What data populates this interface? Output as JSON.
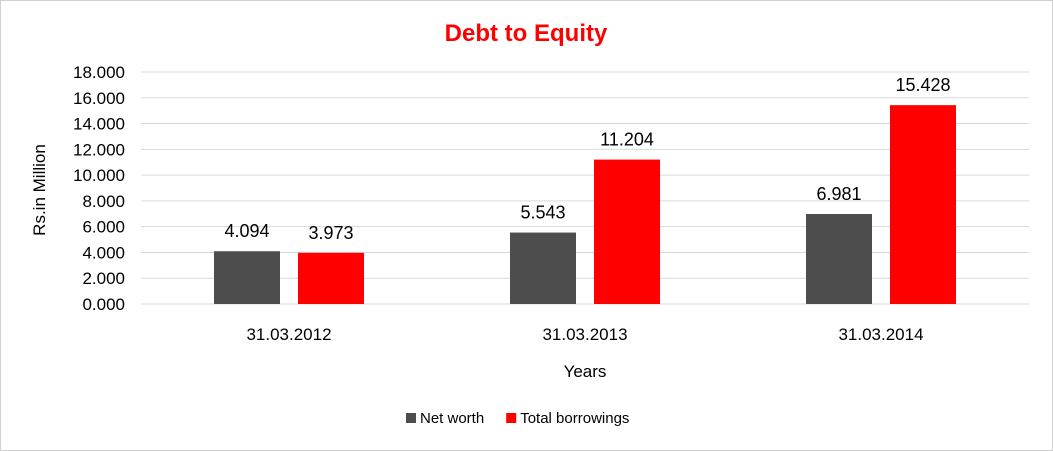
{
  "chart_data": {
    "type": "bar",
    "title": "Debt to Equity",
    "xlabel": "Years",
    "ylabel": "Rs.in Million",
    "categories": [
      "31.03.2012",
      "31.03.2013",
      "31.03.2014"
    ],
    "series": [
      {
        "name": "Net worth",
        "values": [
          4.094,
          5.543,
          6.981
        ],
        "labels": [
          "4.094",
          "5.543",
          "6.981"
        ],
        "color": "#4d4d4d"
      },
      {
        "name": "Total borrowings",
        "values": [
          3.973,
          11.204,
          15.428
        ],
        "labels": [
          "3.973",
          "11.204",
          "15.428"
        ],
        "color": "#ff0000"
      }
    ],
    "ylim": [
      0,
      18
    ],
    "yticks": [
      0,
      2,
      4,
      6,
      8,
      10,
      12,
      14,
      16,
      18
    ],
    "ytick_labels": [
      "0.000",
      "2.000",
      "4.000",
      "6.000",
      "8.000",
      "10.000",
      "12.000",
      "14.000",
      "16.000",
      "18.000"
    ],
    "grid": true,
    "legend_position": "bottom",
    "title_color": "#ff0000"
  }
}
